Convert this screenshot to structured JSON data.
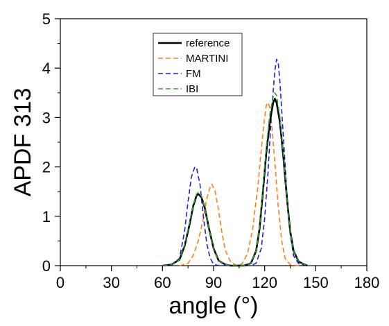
{
  "chart_data": {
    "type": "line",
    "title": "",
    "xlabel": "angle (°)",
    "ylabel": "APDF 313",
    "xlim": [
      0,
      180
    ],
    "ylim": [
      0,
      5
    ],
    "xticks": [
      0,
      30,
      60,
      90,
      120,
      150,
      180
    ],
    "yticks": [
      0,
      1,
      2,
      3,
      4,
      5
    ],
    "x_minor_step": 15,
    "y_minor_step": 0.5,
    "grid": false,
    "legend_position": "top-center",
    "series": [
      {
        "name": "reference",
        "color": "#000000",
        "dash": "solid",
        "points": [
          [
            60,
            0.0
          ],
          [
            65,
            0.02
          ],
          [
            70,
            0.12
          ],
          [
            73,
            0.4
          ],
          [
            76,
            0.85
          ],
          [
            78,
            1.2
          ],
          [
            80,
            1.42
          ],
          [
            81,
            1.45
          ],
          [
            83,
            1.38
          ],
          [
            85,
            1.15
          ],
          [
            87,
            0.8
          ],
          [
            90,
            0.35
          ],
          [
            93,
            0.1
          ],
          [
            97,
            0.02
          ],
          [
            100,
            0.0
          ],
          [
            108,
            0.0
          ],
          [
            112,
            0.05
          ],
          [
            115,
            0.3
          ],
          [
            117,
            0.75
          ],
          [
            119,
            1.5
          ],
          [
            121,
            2.3
          ],
          [
            123,
            2.9
          ],
          [
            125,
            3.3
          ],
          [
            126,
            3.38
          ],
          [
            127,
            3.3
          ],
          [
            129,
            2.9
          ],
          [
            131,
            2.2
          ],
          [
            133,
            1.4
          ],
          [
            135,
            0.7
          ],
          [
            137,
            0.3
          ],
          [
            140,
            0.08
          ],
          [
            145,
            0.0
          ]
        ]
      },
      {
        "name": "MARTINI",
        "color": "#ff7f0e",
        "dash": "dashed",
        "points": [
          [
            70,
            0.0
          ],
          [
            75,
            0.05
          ],
          [
            78,
            0.2
          ],
          [
            81,
            0.5
          ],
          [
            84,
            0.95
          ],
          [
            86,
            1.35
          ],
          [
            88,
            1.6
          ],
          [
            89,
            1.65
          ],
          [
            91,
            1.5
          ],
          [
            93,
            1.1
          ],
          [
            95,
            0.65
          ],
          [
            97,
            0.3
          ],
          [
            100,
            0.08
          ],
          [
            103,
            0.01
          ],
          [
            105,
            0.0
          ],
          [
            107,
            0.05
          ],
          [
            110,
            0.25
          ],
          [
            113,
            0.75
          ],
          [
            116,
            1.6
          ],
          [
            118,
            2.35
          ],
          [
            120,
            3.0
          ],
          [
            121,
            3.25
          ],
          [
            122,
            3.3
          ],
          [
            123,
            3.2
          ],
          [
            124,
            2.9
          ],
          [
            126,
            2.1
          ],
          [
            128,
            1.2
          ],
          [
            130,
            0.5
          ],
          [
            132,
            0.15
          ],
          [
            135,
            0.02
          ],
          [
            140,
            0.0
          ]
        ]
      },
      {
        "name": "FM",
        "color": "#1f1fe0",
        "dash": "dashed",
        "points": [
          [
            65,
            0.0
          ],
          [
            70,
            0.15
          ],
          [
            73,
            0.7
          ],
          [
            75,
            1.3
          ],
          [
            77,
            1.8
          ],
          [
            79,
            2.0
          ],
          [
            80,
            1.98
          ],
          [
            82,
            1.65
          ],
          [
            84,
            1.0
          ],
          [
            86,
            0.45
          ],
          [
            88,
            0.15
          ],
          [
            90,
            0.03
          ],
          [
            93,
            0.0
          ],
          [
            112,
            0.0
          ],
          [
            115,
            0.05
          ],
          [
            118,
            0.35
          ],
          [
            120,
            0.95
          ],
          [
            122,
            1.9
          ],
          [
            124,
            3.1
          ],
          [
            126,
            3.95
          ],
          [
            127,
            4.18
          ],
          [
            128,
            4.1
          ],
          [
            129,
            3.7
          ],
          [
            131,
            2.6
          ],
          [
            133,
            1.5
          ],
          [
            135,
            0.65
          ],
          [
            137,
            0.2
          ],
          [
            140,
            0.04
          ],
          [
            145,
            0.0
          ]
        ]
      },
      {
        "name": "IBI",
        "color": "#2aa02a",
        "dash": "dashed",
        "points": [
          [
            60,
            0.0
          ],
          [
            65,
            0.02
          ],
          [
            70,
            0.12
          ],
          [
            73,
            0.42
          ],
          [
            76,
            0.88
          ],
          [
            78,
            1.22
          ],
          [
            80,
            1.45
          ],
          [
            81,
            1.48
          ],
          [
            83,
            1.4
          ],
          [
            85,
            1.15
          ],
          [
            87,
            0.8
          ],
          [
            90,
            0.34
          ],
          [
            93,
            0.1
          ],
          [
            97,
            0.02
          ],
          [
            100,
            0.0
          ],
          [
            108,
            0.0
          ],
          [
            112,
            0.05
          ],
          [
            115,
            0.3
          ],
          [
            117,
            0.78
          ],
          [
            119,
            1.55
          ],
          [
            121,
            2.4
          ],
          [
            123,
            3.05
          ],
          [
            125,
            3.42
          ],
          [
            126,
            3.5
          ],
          [
            127,
            3.45
          ],
          [
            129,
            3.0
          ],
          [
            131,
            2.25
          ],
          [
            133,
            1.4
          ],
          [
            135,
            0.7
          ],
          [
            137,
            0.3
          ],
          [
            140,
            0.08
          ],
          [
            145,
            0.0
          ]
        ]
      }
    ]
  }
}
